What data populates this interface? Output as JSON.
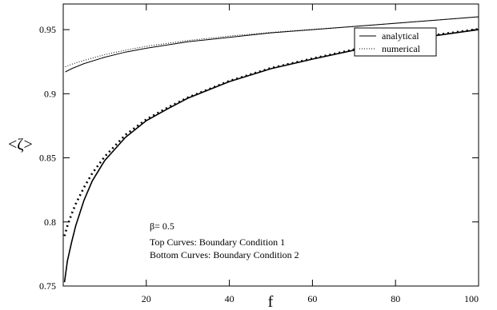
{
  "chart_data": {
    "type": "line",
    "xlabel": "f",
    "ylabel": "<ζ>",
    "xlim": [
      0,
      100
    ],
    "ylim": [
      0.75,
      0.97
    ],
    "x_ticks": [
      20,
      40,
      60,
      80,
      100
    ],
    "y_ticks": [
      0.75,
      0.8,
      0.85,
      0.9,
      0.95
    ],
    "y_tick_labels": [
      "0.75",
      "0.8",
      "0.85",
      "0.9",
      "0.95"
    ],
    "grid": false,
    "legend_position": "top-right",
    "legend": [
      {
        "label": "analytical",
        "style": "solid"
      },
      {
        "label": "numerical",
        "style": "dotted"
      }
    ],
    "annotations": [
      "β= 0.5",
      "Top Curves: Boundary Condition 1",
      "Bottom Curves: Boundary Condition 2"
    ],
    "series": [
      {
        "group": "Top Curves: Boundary Condition 1",
        "legend_ref": "analytical",
        "style": "solid",
        "x": [
          0.5,
          2,
          5,
          10,
          15,
          20,
          30,
          40,
          50,
          60,
          70,
          80,
          90,
          100
        ],
        "y": [
          0.917,
          0.9195,
          0.9235,
          0.9285,
          0.9325,
          0.9355,
          0.9405,
          0.944,
          0.9475,
          0.95,
          0.9525,
          0.955,
          0.9575,
          0.96
        ]
      },
      {
        "group": "Top Curves: Boundary Condition 1",
        "legend_ref": "numerical",
        "style": "dotted",
        "x": [
          0.5,
          2,
          5,
          10,
          15,
          20,
          30,
          40,
          50,
          60,
          70,
          80,
          90,
          100
        ],
        "y": [
          0.921,
          0.923,
          0.926,
          0.9305,
          0.934,
          0.937,
          0.9415,
          0.945,
          0.9478,
          0.9502,
          0.9525,
          0.955,
          0.9575,
          0.96
        ]
      },
      {
        "group": "Bottom Curves: Boundary Condition 2",
        "legend_ref": "analytical",
        "style": "solid",
        "x": [
          0.3,
          1,
          2,
          3,
          5,
          7,
          10,
          15,
          20,
          25,
          30,
          40,
          50,
          60,
          70,
          80,
          90,
          100
        ],
        "y": [
          0.753,
          0.7695,
          0.784,
          0.797,
          0.817,
          0.832,
          0.848,
          0.866,
          0.879,
          0.888,
          0.8965,
          0.9095,
          0.9195,
          0.927,
          0.934,
          0.94,
          0.9455,
          0.95
        ]
      },
      {
        "group": "Bottom Curves: Boundary Condition 2",
        "legend_ref": "numerical",
        "style": "dotted",
        "x": [
          0.3,
          1,
          2,
          3,
          5,
          7,
          10,
          15,
          20,
          25,
          30,
          40,
          50,
          60,
          70,
          80,
          90,
          100
        ],
        "y": [
          0.789,
          0.797,
          0.806,
          0.814,
          0.827,
          0.838,
          0.851,
          0.868,
          0.88,
          0.889,
          0.897,
          0.91,
          0.92,
          0.9275,
          0.9345,
          0.9405,
          0.946,
          0.9505
        ]
      }
    ]
  }
}
